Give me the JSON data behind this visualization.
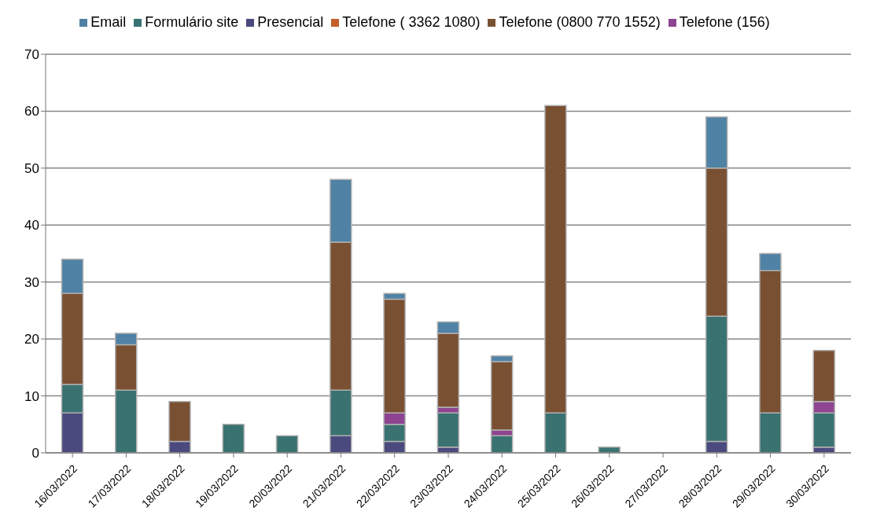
{
  "chart_data": {
    "type": "bar",
    "stacked": true,
    "categories": [
      "16/03/2022",
      "17/03/2022",
      "18/03/2022",
      "19/03/2022",
      "20/03/2022",
      "21/03/2022",
      "22/03/2022",
      "23/03/2022",
      "24/03/2022",
      "25/03/2022",
      "26/03/2022",
      "27/03/2022",
      "28/03/2022",
      "29/03/2022",
      "30/03/2022"
    ],
    "series": [
      {
        "name": "Presencial",
        "color": "#4a4a7e",
        "values": [
          7,
          0,
          2,
          0,
          0,
          3,
          2,
          1,
          0,
          0,
          0,
          0,
          2,
          0,
          1
        ]
      },
      {
        "name": "Formulário site",
        "color": "#3a7272",
        "values": [
          5,
          11,
          0,
          5,
          3,
          8,
          3,
          6,
          3,
          7,
          1,
          0,
          22,
          7,
          6
        ]
      },
      {
        "name": "Telefone (156)",
        "color": "#8e4491",
        "values": [
          0,
          0,
          0,
          0,
          0,
          0,
          2,
          1,
          1,
          0,
          0,
          0,
          0,
          0,
          2
        ]
      },
      {
        "name": "Telefone ( 3362 1080)",
        "color": "#c0622a",
        "values": [
          0,
          0,
          0,
          0,
          0,
          0,
          0,
          0,
          0,
          0,
          0,
          0,
          0,
          0,
          0
        ]
      },
      {
        "name": "Telefone (0800 770 1552)",
        "color": "#7a5033",
        "values": [
          16,
          8,
          7,
          0,
          0,
          26,
          20,
          13,
          12,
          54,
          0,
          0,
          26,
          25,
          9
        ]
      },
      {
        "name": "Email",
        "color": "#4f82a4",
        "values": [
          6,
          2,
          0,
          0,
          0,
          11,
          1,
          2,
          1,
          0,
          0,
          0,
          9,
          3,
          0
        ]
      }
    ],
    "ylim": [
      0,
      70
    ],
    "yticks": [
      0,
      10,
      20,
      30,
      40,
      50,
      60,
      70
    ],
    "grid": "y",
    "legend": "top"
  }
}
